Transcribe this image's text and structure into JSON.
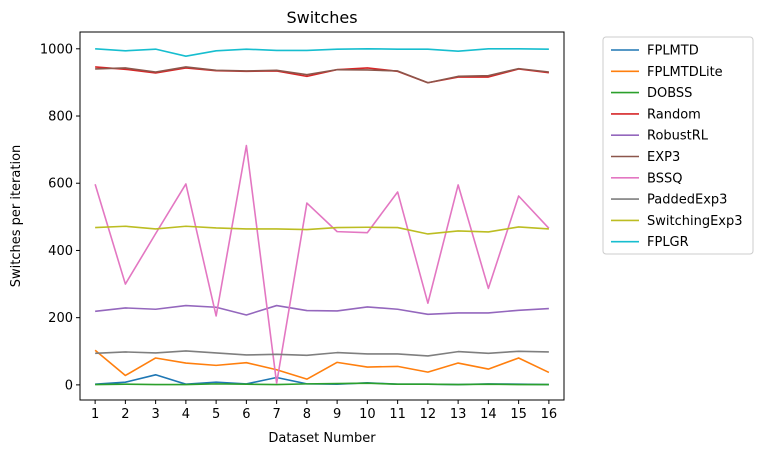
{
  "chart_data": {
    "type": "line",
    "title": "Switches",
    "xlabel": "Dataset Number",
    "ylabel": "Switches per iteration",
    "x": [
      1,
      2,
      3,
      4,
      5,
      6,
      7,
      8,
      9,
      10,
      11,
      12,
      13,
      14,
      15,
      16
    ],
    "xlim": [
      0.5,
      16.5
    ],
    "ylim": [
      -45,
      1050
    ],
    "yticks": [
      0,
      200,
      400,
      600,
      800,
      1000
    ],
    "grid": false,
    "legend_position": "outside right",
    "series": [
      {
        "name": "FPLMTD",
        "color": "#1f77b4",
        "values": [
          2,
          8,
          30,
          2,
          8,
          3,
          22,
          3,
          2,
          6,
          2,
          2,
          1,
          3,
          2,
          1
        ]
      },
      {
        "name": "FPLMTDLite",
        "color": "#ff7f0e",
        "values": [
          103,
          28,
          80,
          65,
          58,
          66,
          45,
          17,
          67,
          53,
          55,
          38,
          65,
          47,
          80,
          37
        ]
      },
      {
        "name": "DOBSS",
        "color": "#2ca02c",
        "values": [
          1,
          2,
          1,
          1,
          3,
          2,
          1,
          3,
          4,
          5,
          2,
          2,
          1,
          2,
          1,
          1
        ]
      },
      {
        "name": "Random",
        "color": "#d62728",
        "values": [
          946,
          939,
          928,
          943,
          935,
          933,
          934,
          918,
          938,
          943,
          933,
          899,
          916,
          916,
          940,
          929
        ]
      },
      {
        "name": "RobustRL",
        "color": "#9467bd",
        "values": [
          219,
          229,
          225,
          236,
          231,
          208,
          236,
          221,
          220,
          232,
          225,
          210,
          214,
          214,
          222,
          227
        ]
      },
      {
        "name": "EXP3",
        "color": "#8c564b",
        "values": [
          940,
          943,
          931,
          946,
          936,
          934,
          936,
          923,
          938,
          937,
          934,
          899,
          918,
          920,
          941,
          931
        ]
      },
      {
        "name": "BSSQ",
        "color": "#e377c2",
        "values": [
          597,
          300,
          450,
          598,
          205,
          712,
          5,
          541,
          456,
          453,
          574,
          243,
          595,
          287,
          562,
          466
        ]
      },
      {
        "name": "PaddedExp3",
        "color": "#7f7f7f",
        "values": [
          94,
          98,
          95,
          101,
          95,
          89,
          91,
          88,
          96,
          92,
          92,
          86,
          99,
          94,
          100,
          98
        ]
      },
      {
        "name": "SwitchingExp3",
        "color": "#bcbd22",
        "values": [
          468,
          472,
          464,
          472,
          467,
          464,
          464,
          462,
          468,
          469,
          468,
          449,
          458,
          455,
          470,
          464
        ]
      },
      {
        "name": "FPLGR",
        "color": "#17becf",
        "values": [
          1000,
          994,
          999,
          978,
          994,
          999,
          995,
          995,
          999,
          1000,
          999,
          999,
          993,
          1000,
          1000,
          999
        ]
      }
    ]
  }
}
